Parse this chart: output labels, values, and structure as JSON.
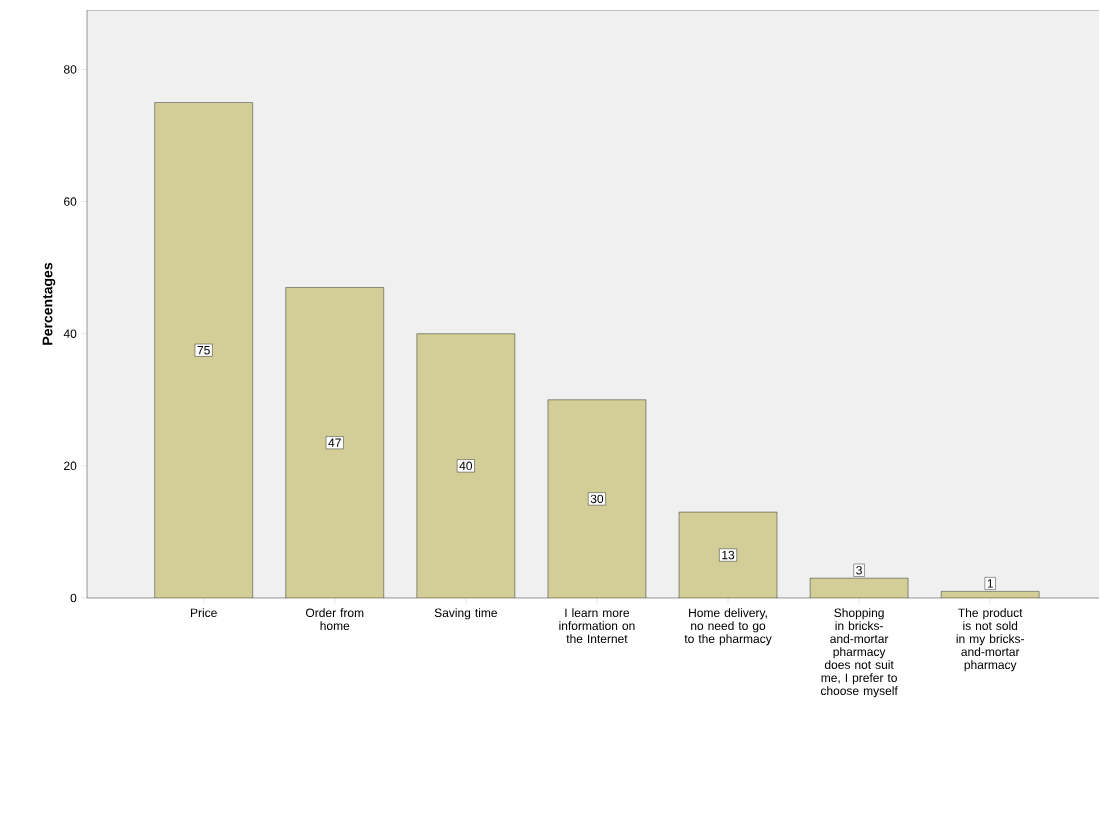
{
  "chart_data": {
    "type": "bar",
    "ylabel": "Percentages",
    "categories": [
      "Price",
      "Order from home",
      "Saving time",
      "I learn more information on the Internet",
      "Home delivery, no need to go to the pharmacy",
      "Shopping in bricks-and-mortar pharmacy does not suit me, I prefer to choose myself",
      "The product is not sold in my bricks-and-mortar pharmacy"
    ],
    "values": [
      75,
      47,
      40,
      30,
      13,
      3,
      1
    ],
    "color": "#d3ce97",
    "ylim": [
      0,
      89
    ],
    "yticks": [
      0,
      20,
      40,
      60,
      80
    ],
    "data_labels": true
  }
}
